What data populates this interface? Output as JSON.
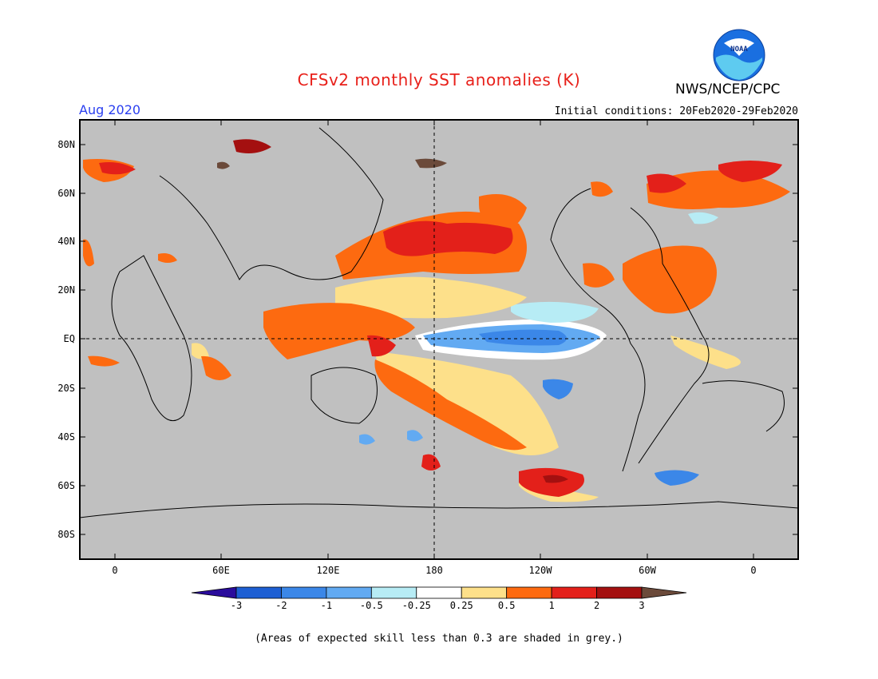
{
  "title": "CFSv2 monthly SST anomalies (K)",
  "month_label": "Aug 2020",
  "initial_conditions": "Initial conditions: 20Feb2020-29Feb2020",
  "agency": "NWS/NCEP/CPC",
  "logo_text": "NOAA",
  "footnote": "(Areas of expected skill less than 0.3 are shaded in grey.)",
  "lat_labels": [
    "80N",
    "60N",
    "40N",
    "20N",
    "EQ",
    "20S",
    "40S",
    "60S",
    "80S"
  ],
  "lon_labels": [
    "0",
    "60E",
    "120E",
    "180",
    "120W",
    "60W",
    "0"
  ],
  "colorbar": {
    "labels": [
      "-3",
      "-2",
      "-1",
      "-0.5",
      "-0.25",
      "0.25",
      "0.5",
      "1",
      "2",
      "3"
    ],
    "colors": [
      "#2a0c9c",
      "#1d5fd3",
      "#3b87e8",
      "#62aaf2",
      "#b7ecf5",
      "#ffffff",
      "#fde08a",
      "#fd6a10",
      "#e3201a",
      "#a41010",
      "#6b4a3a"
    ]
  },
  "colors": {
    "grey": "#c0c0c0",
    "title": "#e8201a",
    "month": "#2a3ff0"
  }
}
